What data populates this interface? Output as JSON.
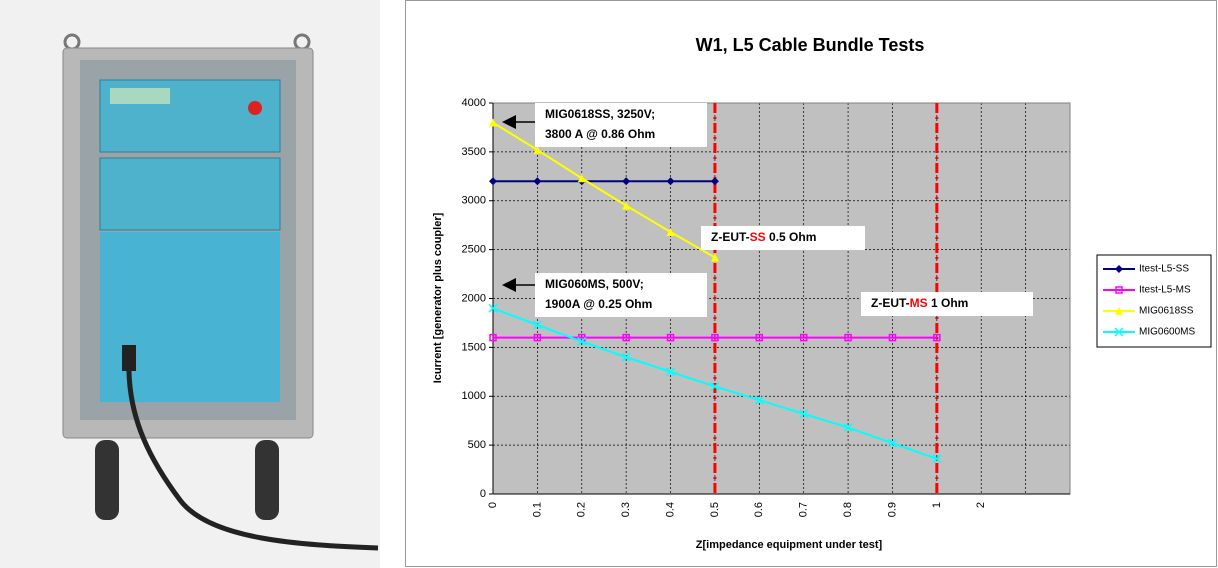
{
  "chart_data": {
    "type": "line",
    "title": "W1, L5 Cable Bundle Tests",
    "x_label": "Z[impedance equipment under test]",
    "y_label": "Icurrent [generator plus coupler]",
    "categories": [
      "0",
      "0.1",
      "0.2",
      "0.3",
      "0.4",
      "0.5",
      "0.6",
      "0.7",
      "0.8",
      "0.9",
      "1",
      "2",
      null,
      null
    ],
    "ylim": [
      0,
      4000
    ],
    "yticks": [
      0,
      500,
      1000,
      1500,
      2000,
      2500,
      3000,
      3500,
      4000
    ],
    "grid": true,
    "series": [
      {
        "name": "Itest-L5-SS",
        "color": "#000080",
        "marker": "diamond",
        "values": [
          3200,
          3200,
          3200,
          3200,
          3200,
          3200,
          null,
          null,
          null,
          null,
          null,
          null,
          null,
          null
        ]
      },
      {
        "name": "Itest-L5-MS",
        "color": "#ff00ff",
        "marker": "square",
        "values": [
          1600,
          1600,
          1600,
          1600,
          1600,
          1600,
          1600,
          1600,
          1600,
          1600,
          1600,
          null,
          null,
          null
        ]
      },
      {
        "name": "MIG0618SS",
        "color": "#ffff00",
        "marker": "triangle",
        "values": [
          3800,
          3520,
          3230,
          2950,
          2680,
          2420,
          null,
          null,
          null,
          null,
          null,
          null,
          null,
          null
        ]
      },
      {
        "name": "MIG0600MS",
        "color": "#00ffff",
        "marker": "cross",
        "values": [
          1900,
          1730,
          1560,
          1400,
          1250,
          1100,
          960,
          820,
          680,
          520,
          360,
          null,
          null,
          null
        ]
      }
    ],
    "reference_lines": [
      {
        "x": 0.5,
        "color": "#ff0000"
      },
      {
        "x": 1,
        "color": "#ff0000"
      }
    ],
    "annotations": [
      {
        "lines": [
          [
            {
              "text": "MIG0618SS, 3250V;",
              "color": "#000000"
            }
          ],
          [
            {
              "text": "3800 A @ 0.86 Ohm",
              "color": "#000000"
            }
          ]
        ]
      },
      {
        "lines": [
          [
            {
              "text": "MIG060MS, 500V;",
              "color": "#000000"
            }
          ],
          [
            {
              "text": "1900A @ 0.25 Ohm",
              "color": "#000000"
            }
          ]
        ]
      },
      {
        "lines": [
          [
            {
              "text": "Z-EUT-",
              "color": "#000000"
            },
            {
              "text": "SS",
              "color": "#ff0000"
            },
            {
              "text": " 0.5 Ohm",
              "color": "#000000"
            }
          ]
        ]
      },
      {
        "lines": [
          [
            {
              "text": "Z-EUT-",
              "color": "#000000"
            },
            {
              "text": "MS",
              "color": "#ff0000"
            },
            {
              "text": " 1 Ohm",
              "color": "#000000"
            }
          ]
        ]
      }
    ]
  }
}
